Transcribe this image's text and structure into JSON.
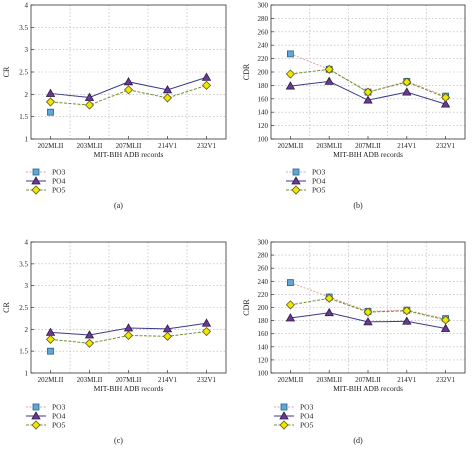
{
  "chart_data": [
    {
      "type": "line",
      "panel_label": "(a)",
      "xlabel": "MIT-BIH ADB records",
      "ylabel": "CR",
      "categories": [
        "202MLII",
        "203MLII",
        "207MLII",
        "214V1",
        "232V1"
      ],
      "ylim": [
        1,
        4
      ],
      "yticks": [
        "1",
        "1.5",
        "2",
        "2.5",
        "3",
        "3.5",
        "4"
      ],
      "grid": true,
      "legend_position": "below",
      "series": [
        {
          "name": "PO3",
          "values": [
            1.6,
            null,
            null,
            null,
            null
          ]
        },
        {
          "name": "PO4",
          "values": [
            2.02,
            1.93,
            2.28,
            2.1,
            2.38
          ]
        },
        {
          "name": "PO5",
          "values": [
            1.83,
            1.76,
            2.1,
            1.92,
            2.2
          ]
        }
      ]
    },
    {
      "type": "line",
      "panel_label": "(b)",
      "xlabel": "MIT-BIH ADB records",
      "ylabel": "CDR",
      "categories": [
        "202MLII",
        "203MLII",
        "207MLII",
        "214V1",
        "232V1"
      ],
      "ylim": [
        100,
        300
      ],
      "yticks": [
        "100",
        "120",
        "140",
        "160",
        "180",
        "200",
        "220",
        "240",
        "260",
        "280",
        "300"
      ],
      "grid": true,
      "legend_position": "below",
      "series": [
        {
          "name": "PO3",
          "values": [
            227,
            204,
            170,
            186,
            164
          ]
        },
        {
          "name": "PO4",
          "values": [
            179,
            186,
            158,
            170,
            152
          ]
        },
        {
          "name": "PO5",
          "values": [
            197,
            204,
            170,
            185,
            162
          ]
        }
      ]
    },
    {
      "type": "line",
      "panel_label": "(c)",
      "xlabel": "MIT-BIH ADB records",
      "ylabel": "CR",
      "categories": [
        "202MLII",
        "203MLII",
        "207MLII",
        "214V1",
        "232V1"
      ],
      "ylim": [
        1,
        4
      ],
      "yticks": [
        "1",
        "1.5",
        "2",
        "2.5",
        "3",
        "3.5",
        "4"
      ],
      "grid": true,
      "legend_position": "below",
      "series": [
        {
          "name": "PO3",
          "values": [
            1.5,
            null,
            null,
            null,
            null
          ]
        },
        {
          "name": "PO4",
          "values": [
            1.93,
            1.87,
            2.03,
            2.01,
            2.14
          ]
        },
        {
          "name": "PO5",
          "values": [
            1.77,
            1.68,
            1.86,
            1.84,
            1.95
          ]
        }
      ]
    },
    {
      "type": "line",
      "panel_label": "(d)",
      "xlabel": "MIT-BIH ADB records",
      "ylabel": "CDR",
      "categories": [
        "202MLII",
        "203MLII",
        "207MLII",
        "214V1",
        "232V1"
      ],
      "ylim": [
        100,
        300
      ],
      "yticks": [
        "100",
        "120",
        "140",
        "160",
        "180",
        "200",
        "220",
        "240",
        "260",
        "280",
        "300"
      ],
      "grid": true,
      "legend_position": "below",
      "series": [
        {
          "name": "PO3",
          "values": [
            238,
            216,
            194,
            196,
            183
          ]
        },
        {
          "name": "PO4",
          "values": [
            184,
            192,
            178,
            179,
            168
          ]
        },
        {
          "name": "PO5",
          "values": [
            204,
            214,
            193,
            195,
            181
          ]
        }
      ]
    }
  ],
  "series_styles": {
    "PO3": {
      "color": "#e8a0a0",
      "marker_fill": "#5fa8d6",
      "marker": "square"
    },
    "PO4": {
      "color": "#3a3a8c",
      "marker_fill": "#6a3a8c",
      "marker": "triangle"
    },
    "PO5": {
      "color": "#6f8f2f",
      "marker_fill": "#f2e600",
      "marker": "diamond"
    }
  }
}
